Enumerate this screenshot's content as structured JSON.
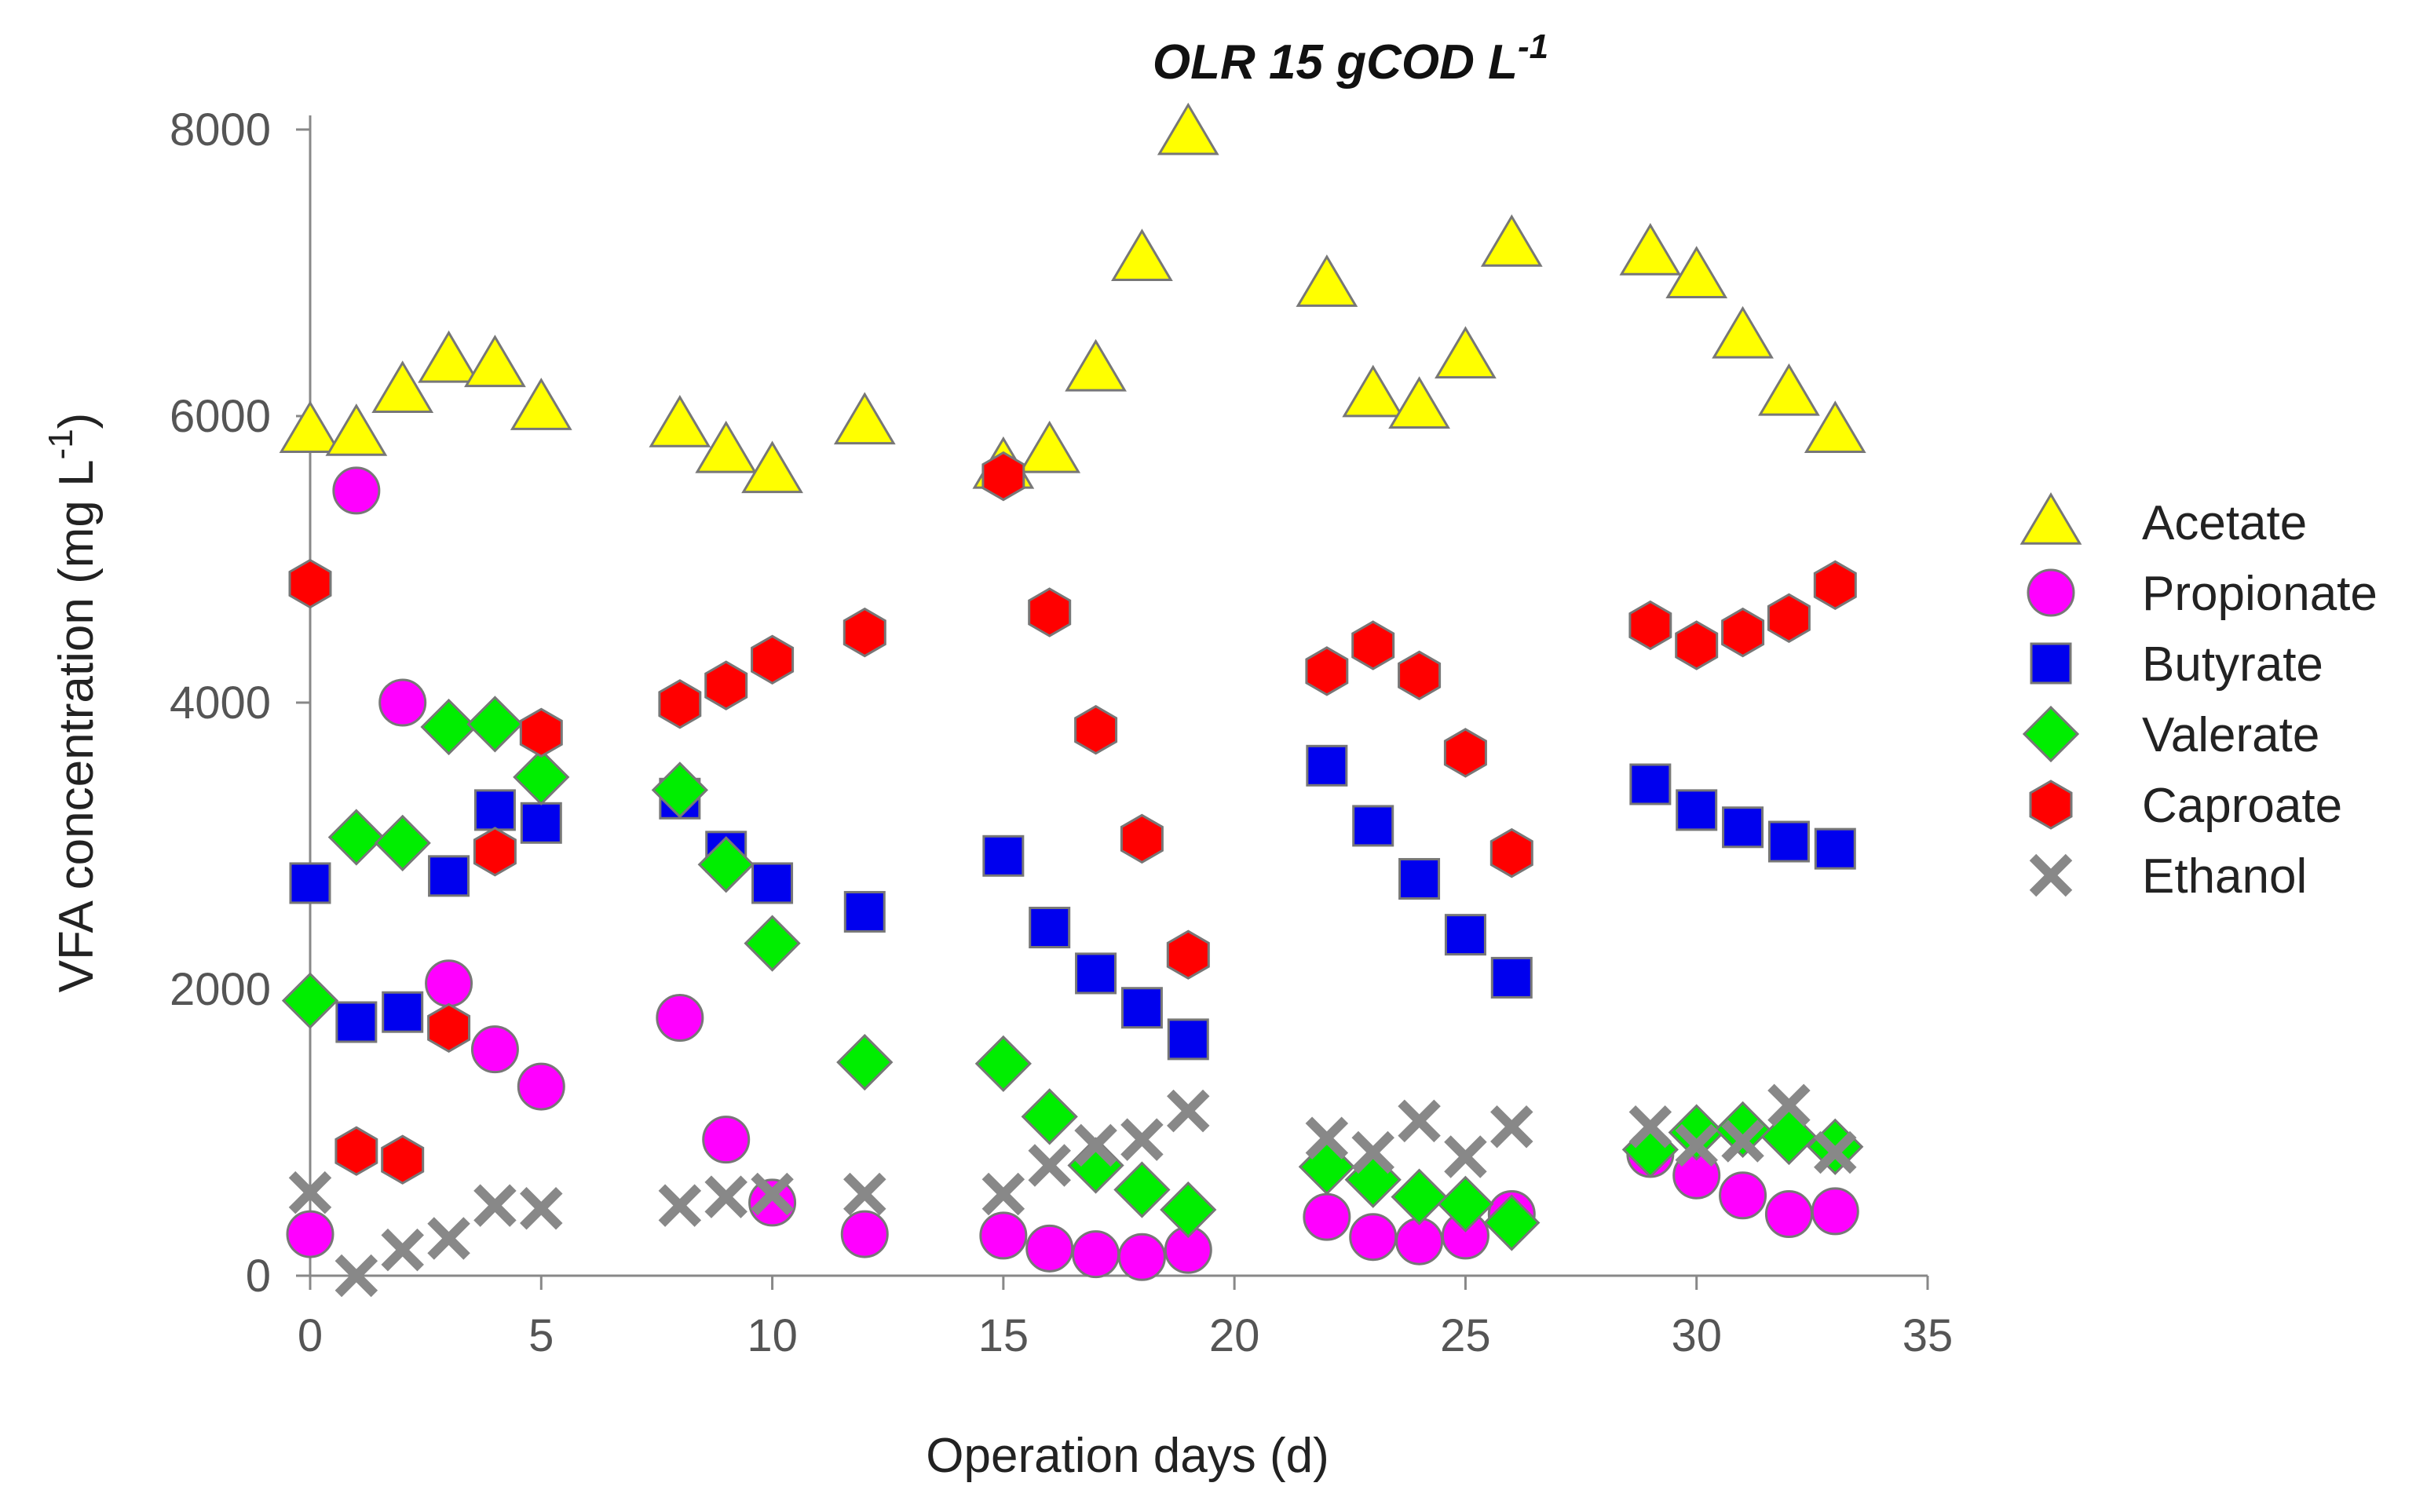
{
  "chart_data": {
    "type": "scatter",
    "title": "OLR 15 gCOD L",
    "title_superscript": "-1",
    "xlabel": "Operation days (d)",
    "ylabel": "VFA concentration (mg L",
    "ylabel_superscript": "-1",
    "ylabel_close": ")",
    "xlim": [
      0,
      35
    ],
    "ylim": [
      0,
      8000
    ],
    "xticks": [
      0,
      5,
      10,
      15,
      20,
      25,
      30,
      35
    ],
    "yticks": [
      0,
      2000,
      4000,
      6000,
      8000
    ],
    "xtick_labels": [
      "0",
      "5",
      "10",
      "15",
      "20",
      "25",
      "30",
      "35"
    ],
    "ytick_labels": [
      "0",
      "2000",
      "4000",
      "6000",
      "8000"
    ],
    "grid": false,
    "legend_position": "right",
    "series": [
      {
        "name": "Acetate",
        "marker": "triangle",
        "color": "#FFFF00",
        "x": [
          0,
          1,
          2,
          3,
          4,
          5,
          8,
          9,
          10,
          12,
          15,
          16,
          17,
          18,
          19,
          22,
          23,
          24,
          25,
          26,
          29,
          30,
          31,
          32,
          33
        ],
        "y": [
          5900,
          5880,
          6180,
          6390,
          6360,
          6060,
          5940,
          5760,
          5620,
          5960,
          5650,
          5760,
          6330,
          7100,
          7980,
          6920,
          6150,
          6070,
          6420,
          7200,
          7140,
          6980,
          6560,
          6160,
          5900
        ]
      },
      {
        "name": "Propionate",
        "marker": "circle",
        "color": "#FF00FF",
        "x": [
          0,
          1,
          2,
          3,
          4,
          5,
          8,
          9,
          10,
          12,
          15,
          16,
          17,
          18,
          19,
          22,
          23,
          24,
          25,
          26,
          29,
          30,
          31,
          32,
          33
        ],
        "y": [
          290,
          5480,
          4000,
          2040,
          1580,
          1320,
          1800,
          950,
          510,
          290,
          280,
          190,
          150,
          130,
          180,
          410,
          270,
          240,
          280,
          430,
          850,
          700,
          560,
          430,
          450
        ]
      },
      {
        "name": "Butyrate",
        "marker": "square",
        "color": "#0000EE",
        "x": [
          0,
          1,
          2,
          3,
          4,
          5,
          8,
          9,
          10,
          12,
          15,
          16,
          17,
          18,
          19,
          22,
          23,
          24,
          25,
          26,
          29,
          30,
          31,
          32,
          33
        ],
        "y": [
          2740,
          1770,
          1840,
          2790,
          3250,
          3160,
          3330,
          2960,
          2740,
          2540,
          2930,
          2430,
          2110,
          1870,
          1650,
          3560,
          3140,
          2770,
          2380,
          2080,
          3430,
          3250,
          3130,
          3030,
          2980
        ]
      },
      {
        "name": "Valerate",
        "marker": "diamond",
        "color": "#00EE00",
        "x": [
          0,
          1,
          2,
          3,
          4,
          5,
          8,
          9,
          10,
          12,
          15,
          16,
          17,
          18,
          19,
          22,
          23,
          24,
          25,
          26,
          29,
          30,
          31,
          32,
          33
        ],
        "y": [
          1920,
          3060,
          3020,
          3830,
          3850,
          3480,
          3390,
          2870,
          2320,
          1490,
          1480,
          1110,
          770,
          600,
          460,
          760,
          670,
          550,
          500,
          370,
          880,
          1000,
          1020,
          970,
          900
        ]
      },
      {
        "name": "Caproate",
        "marker": "hexagon",
        "color": "#FF0000",
        "x": [
          0,
          1,
          2,
          3,
          4,
          5,
          8,
          9,
          10,
          12,
          15,
          16,
          17,
          18,
          19,
          22,
          23,
          24,
          25,
          26,
          29,
          30,
          31,
          32,
          33
        ],
        "y": [
          4830,
          870,
          810,
          1730,
          2960,
          3790,
          3990,
          4120,
          4300,
          4490,
          5580,
          4630,
          3810,
          3050,
          2240,
          4220,
          4400,
          4190,
          3650,
          2950,
          4540,
          4400,
          4490,
          4590,
          4820
        ]
      },
      {
        "name": "Ethanol",
        "marker": "x",
        "color": "#888888",
        "x": [
          0,
          1,
          2,
          3,
          4,
          5,
          8,
          9,
          10,
          12,
          15,
          16,
          17,
          18,
          19,
          22,
          23,
          24,
          25,
          26,
          29,
          30,
          31,
          32,
          33
        ],
        "y": [
          580,
          0,
          180,
          260,
          490,
          470,
          490,
          550,
          570,
          570,
          570,
          770,
          910,
          950,
          1150,
          960,
          860,
          1080,
          830,
          1040,
          1040,
          910,
          940,
          1190,
          860
        ]
      }
    ]
  }
}
